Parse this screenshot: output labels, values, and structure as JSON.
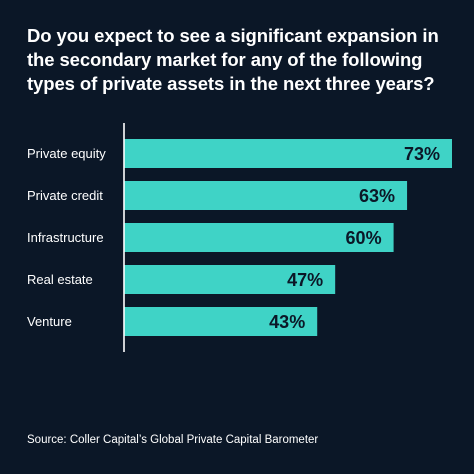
{
  "title": "Do you expect to see a significant expansion in the secondary market for any of the following types of private assets in the next three years?",
  "source": "Source: Coller Capital’s Global Private Capital Barometer",
  "colors": {
    "background": "#0b1727",
    "bar": "#3fd3c6",
    "bar_label": "#0b1727",
    "text": "#ffffff"
  },
  "chart_data": {
    "type": "bar",
    "orientation": "horizontal",
    "categories": [
      "Private equity",
      "Private credit",
      "Infrastructure",
      "Real estate",
      "Venture"
    ],
    "values": [
      73,
      63,
      60,
      47,
      43
    ],
    "value_labels": [
      "73%",
      "63%",
      "60%",
      "47%",
      "43%"
    ],
    "unit": "%",
    "title": "Do you expect to see a significant expansion in the secondary market for any of the following types of private assets in the next three years?",
    "xlim": [
      0,
      73
    ],
    "grid": false,
    "legend": "none"
  }
}
